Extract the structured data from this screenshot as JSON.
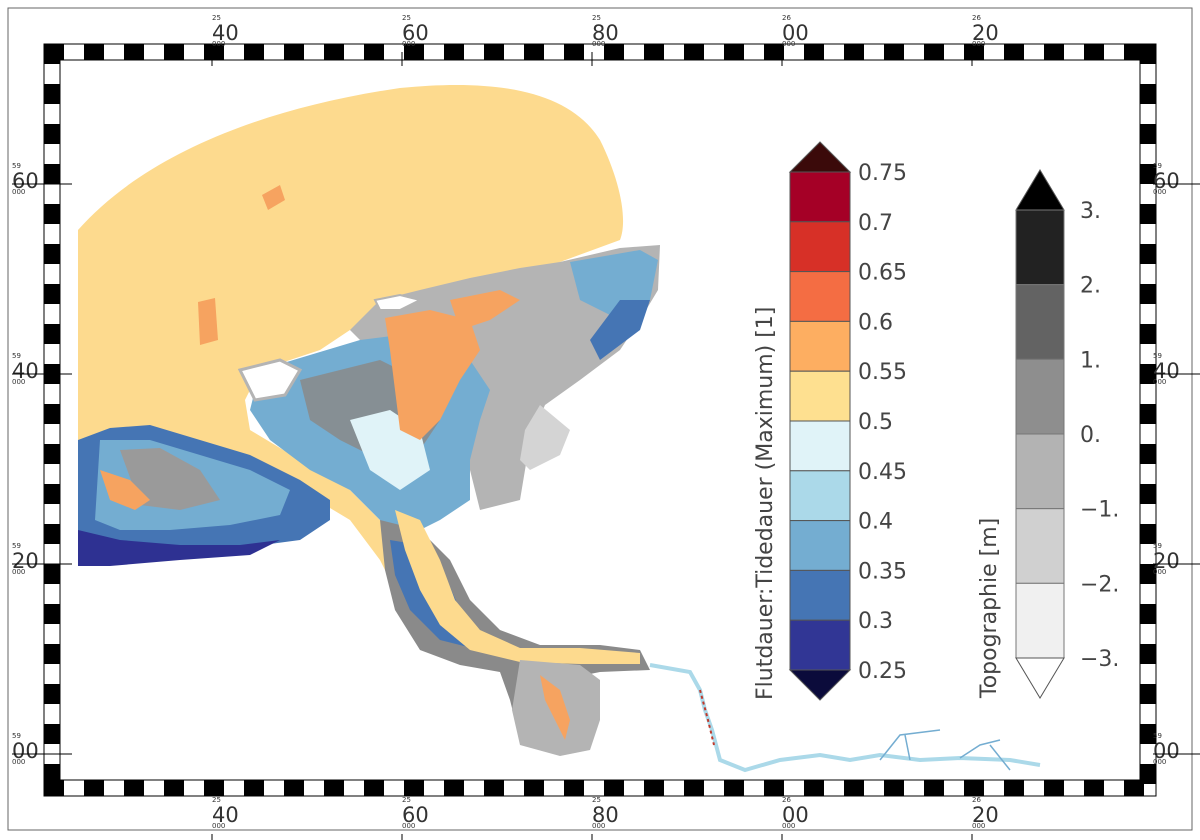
{
  "map": {
    "grid_labels": {
      "top": [
        {
          "pre": "25",
          "main": "40"
        },
        {
          "pre": "25",
          "main": "60"
        },
        {
          "pre": "25",
          "main": "80"
        },
        {
          "pre": "26",
          "main": "00"
        },
        {
          "pre": "26",
          "main": "20"
        }
      ],
      "bottom": [
        {
          "pre": "25",
          "main": "40"
        },
        {
          "pre": "25",
          "main": "60"
        },
        {
          "pre": "25",
          "main": "80"
        },
        {
          "pre": "26",
          "main": "00"
        },
        {
          "pre": "26",
          "main": "20"
        }
      ],
      "left": [
        {
          "pre": "59",
          "main": "60"
        },
        {
          "pre": "59",
          "main": "40"
        },
        {
          "pre": "59",
          "main": "20"
        },
        {
          "pre": "59",
          "main": "00"
        }
      ],
      "right": [
        {
          "pre": "59",
          "main": "60"
        },
        {
          "pre": "59",
          "main": "40"
        },
        {
          "pre": "59",
          "main": "20"
        },
        {
          "pre": "59",
          "main": "00"
        }
      ],
      "small_suffix": "000"
    },
    "colors": {
      "sea": "#fdda8e",
      "channel_light": "#f9b468",
      "channel": "#f6a360",
      "blue_dark": "#2e3192",
      "blue_mid": "#4575b4",
      "blue_light": "#74add1",
      "blue_pale": "#abd9e9",
      "ice": "#e0f3f8",
      "gray_dark": "#8a8a8a",
      "gray_mid": "#b4b4b4",
      "gray_light": "#d4d4d4",
      "red": "#c0392b"
    }
  },
  "legend_flut": {
    "title": "Flutdauer:Tidedauer (Maximum) [1]",
    "ticks": [
      "0.75",
      "0.7",
      "0.65",
      "0.6",
      "0.55",
      "0.5",
      "0.45",
      "0.4",
      "0.35",
      "0.3",
      "0.25"
    ],
    "colors_top_to_bottom": [
      "#a50026",
      "#d73027",
      "#f46d43",
      "#fdae61",
      "#fee090",
      "#e0f3f8",
      "#abd9e9",
      "#74add1",
      "#4575b4",
      "#313695"
    ],
    "over_color": "#3b0a0a",
    "under_color": "#0b0b3b"
  },
  "legend_topo": {
    "title": "Topographie [m]",
    "ticks": [
      "3.",
      "2.",
      "1.",
      "0.",
      "−1.",
      "−2.",
      "−3."
    ],
    "colors_top_to_bottom": [
      "#222222",
      "#636363",
      "#8e8e8e",
      "#b3b3b3",
      "#d0d0d0",
      "#f0f0f0"
    ],
    "over_color": "#000000",
    "under_color": "#ffffff"
  }
}
